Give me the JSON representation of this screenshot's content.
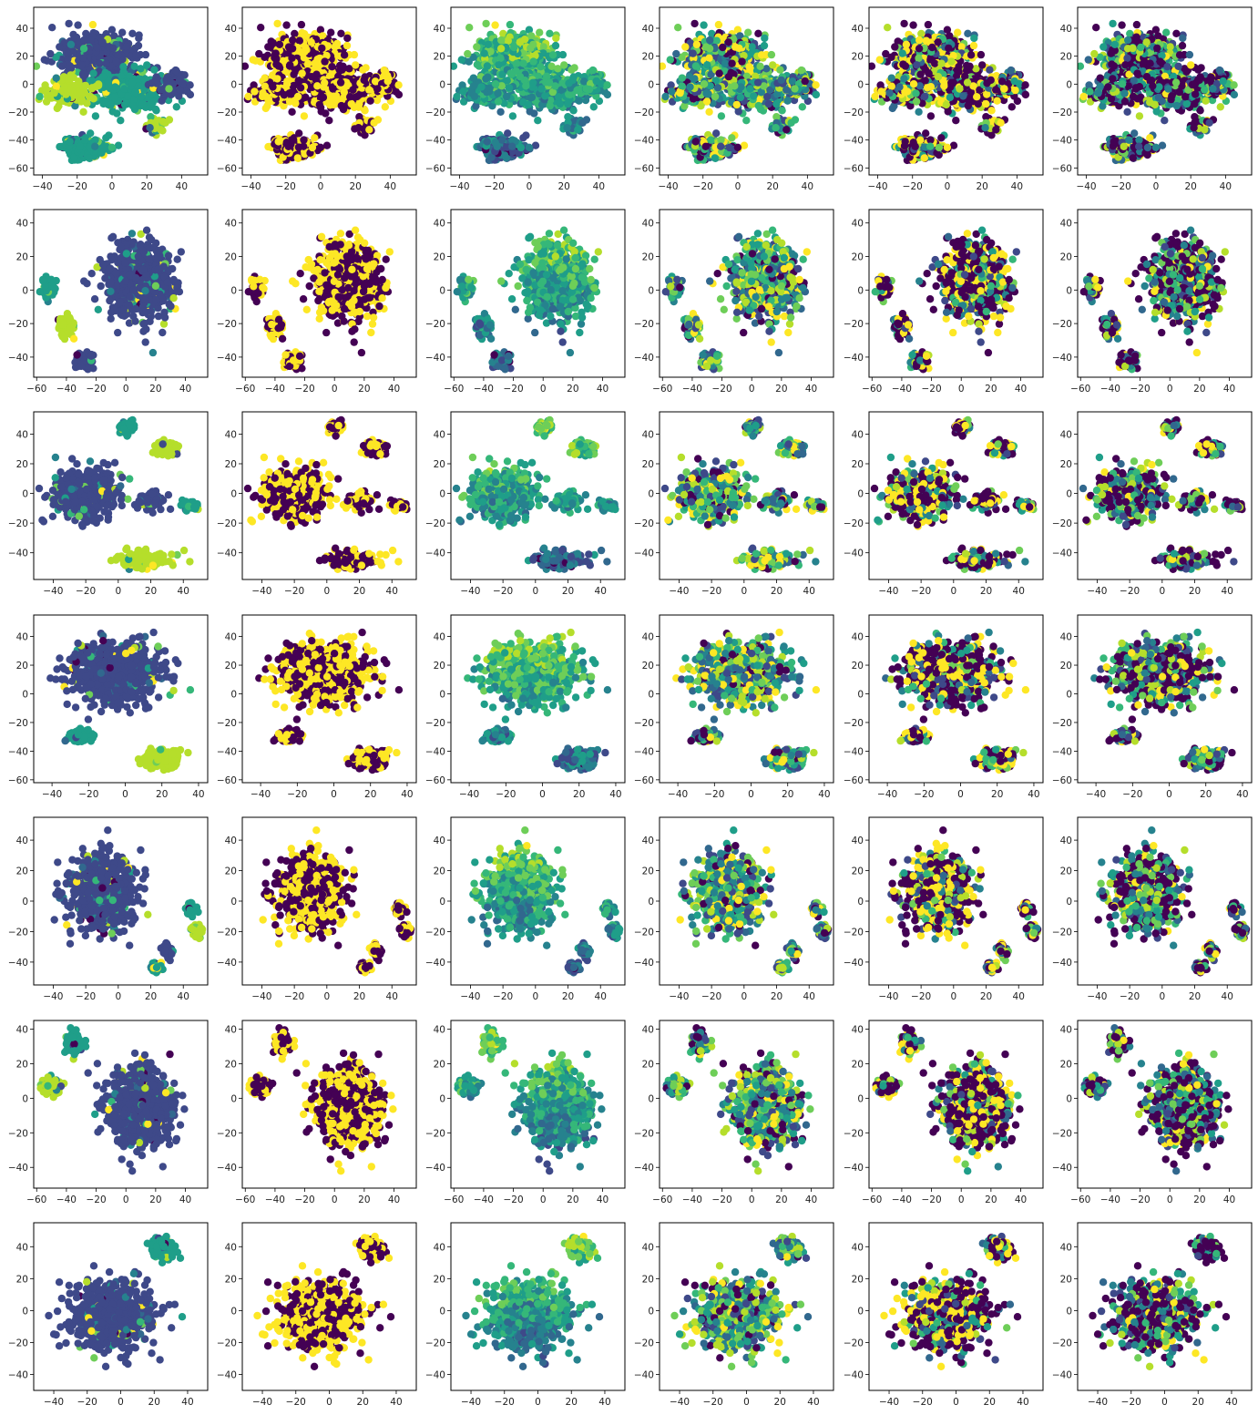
{
  "figure": {
    "rows": 7,
    "cols": 6,
    "colormap": "viridis",
    "colors": {
      "purple": "#440154",
      "indigo": "#3e4989",
      "blue": "#31688e",
      "teal": "#26828e",
      "green": "#1f9e89",
      "mint": "#35b779",
      "lime": "#6ece58",
      "yellowgreen": "#b5de2b",
      "yellow": "#fde725"
    }
  },
  "chart_data": [
    {
      "row": 0,
      "type": "scatter",
      "xlim": [
        -45,
        55
      ],
      "ylim": [
        -65,
        55
      ],
      "xticks": [
        -40,
        -20,
        0,
        20,
        40
      ],
      "yticks": [
        -60,
        -40,
        -20,
        0,
        20,
        40
      ],
      "xlabel": "",
      "ylabel": "",
      "grid": false,
      "clusters": [
        {
          "x": -10,
          "y": 20,
          "sx": 20,
          "sy": 14,
          "n": 420,
          "tag": "a"
        },
        {
          "x": 10,
          "y": -5,
          "sx": 18,
          "sy": 12,
          "n": 360,
          "tag": "b"
        },
        {
          "x": -25,
          "y": -5,
          "sx": 12,
          "sy": 9,
          "n": 180,
          "tag": "c"
        },
        {
          "x": 35,
          "y": 0,
          "sx": 9,
          "sy": 8,
          "n": 120,
          "tag": "d"
        },
        {
          "x": -15,
          "y": -45,
          "sx": 13,
          "sy": 7,
          "n": 200,
          "tag": "e"
        },
        {
          "x": 25,
          "y": -30,
          "sx": 6,
          "sy": 5,
          "n": 50,
          "tag": "f"
        }
      ]
    },
    {
      "row": 1,
      "type": "scatter",
      "xlim": [
        -62,
        55
      ],
      "ylim": [
        -52,
        48
      ],
      "xticks": [
        -60,
        -40,
        -20,
        0,
        20,
        40
      ],
      "yticks": [
        -40,
        -20,
        0,
        20,
        40
      ],
      "xlabel": "",
      "ylabel": "",
      "grid": false,
      "clusters": [
        {
          "x": 10,
          "y": 5,
          "sx": 20,
          "sy": 20,
          "n": 700,
          "tag": "a"
        },
        {
          "x": -52,
          "y": 2,
          "sx": 4,
          "sy": 6,
          "n": 60,
          "tag": "b"
        },
        {
          "x": -40,
          "y": -22,
          "sx": 5,
          "sy": 5,
          "n": 70,
          "tag": "c"
        },
        {
          "x": -28,
          "y": -42,
          "sx": 6,
          "sy": 4,
          "n": 70,
          "tag": "d"
        }
      ]
    },
    {
      "row": 2,
      "type": "scatter",
      "xlim": [
        -52,
        55
      ],
      "ylim": [
        -58,
        55
      ],
      "xticks": [
        -40,
        -20,
        0,
        20,
        40
      ],
      "yticks": [
        -40,
        -20,
        0,
        20,
        40
      ],
      "xlabel": "",
      "ylabel": "",
      "grid": false,
      "clusters": [
        {
          "x": -20,
          "y": 0,
          "sx": 16,
          "sy": 15,
          "n": 450,
          "tag": "a"
        },
        {
          "x": 5,
          "y": 45,
          "sx": 4,
          "sy": 4,
          "n": 60,
          "tag": "b"
        },
        {
          "x": 30,
          "y": 30,
          "sx": 7,
          "sy": 5,
          "n": 90,
          "tag": "c"
        },
        {
          "x": 20,
          "y": -5,
          "sx": 7,
          "sy": 5,
          "n": 80,
          "tag": "d"
        },
        {
          "x": 45,
          "y": -8,
          "sx": 4,
          "sy": 3,
          "n": 50,
          "tag": "e"
        },
        {
          "x": 15,
          "y": -45,
          "sx": 15,
          "sy": 5,
          "n": 140,
          "tag": "f"
        }
      ]
    },
    {
      "row": 3,
      "type": "scatter",
      "xlim": [
        -50,
        45
      ],
      "ylim": [
        -62,
        55
      ],
      "xticks": [
        -40,
        -20,
        0,
        20,
        40
      ],
      "yticks": [
        -60,
        -40,
        -20,
        0,
        20,
        40
      ],
      "xlabel": "",
      "ylabel": "",
      "grid": false,
      "clusters": [
        {
          "x": -5,
          "y": 15,
          "sx": 22,
          "sy": 18,
          "n": 700,
          "tag": "a"
        },
        {
          "x": -25,
          "y": -30,
          "sx": 7,
          "sy": 5,
          "n": 60,
          "tag": "b"
        },
        {
          "x": 20,
          "y": -45,
          "sx": 9,
          "sy": 6,
          "n": 150,
          "tag": "c"
        }
      ]
    },
    {
      "row": 4,
      "type": "scatter",
      "xlim": [
        -52,
        55
      ],
      "ylim": [
        -55,
        55
      ],
      "xticks": [
        -40,
        -20,
        0,
        20,
        40
      ],
      "yticks": [
        -40,
        -20,
        0,
        20,
        40
      ],
      "xlabel": "",
      "ylabel": "",
      "grid": false,
      "clusters": [
        {
          "x": -10,
          "y": 5,
          "sx": 18,
          "sy": 22,
          "n": 650,
          "tag": "a"
        },
        {
          "x": 45,
          "y": -5,
          "sx": 4,
          "sy": 4,
          "n": 40,
          "tag": "b"
        },
        {
          "x": 48,
          "y": -20,
          "sx": 3,
          "sy": 4,
          "n": 40,
          "tag": "c"
        },
        {
          "x": 30,
          "y": -32,
          "sx": 3,
          "sy": 4,
          "n": 40,
          "tag": "d"
        },
        {
          "x": 23,
          "y": -43,
          "sx": 3,
          "sy": 3,
          "n": 40,
          "tag": "e"
        }
      ]
    },
    {
      "row": 5,
      "type": "scatter",
      "xlim": [
        -62,
        55
      ],
      "ylim": [
        -52,
        45
      ],
      "xticks": [
        -60,
        -40,
        -20,
        0,
        20,
        40
      ],
      "yticks": [
        -40,
        -20,
        0,
        20,
        40
      ],
      "xlabel": "",
      "ylabel": "",
      "grid": false,
      "clusters": [
        {
          "x": 10,
          "y": -5,
          "sx": 20,
          "sy": 20,
          "n": 700,
          "tag": "a"
        },
        {
          "x": -35,
          "y": 32,
          "sx": 6,
          "sy": 6,
          "n": 80,
          "tag": "b"
        },
        {
          "x": -50,
          "y": 6,
          "sx": 6,
          "sy": 4,
          "n": 80,
          "tag": "c"
        }
      ]
    },
    {
      "row": 6,
      "type": "scatter",
      "xlim": [
        -52,
        52
      ],
      "ylim": [
        -50,
        55
      ],
      "xticks": [
        -40,
        -20,
        0,
        20,
        40
      ],
      "yticks": [
        -40,
        -20,
        0,
        20,
        40
      ],
      "xlabel": "",
      "ylabel": "",
      "grid": false,
      "clusters": [
        {
          "x": -5,
          "y": -3,
          "sx": 22,
          "sy": 18,
          "n": 750,
          "tag": "a"
        },
        {
          "x": 25,
          "y": 40,
          "sx": 7,
          "sy": 6,
          "n": 90,
          "tag": "b"
        }
      ]
    }
  ]
}
